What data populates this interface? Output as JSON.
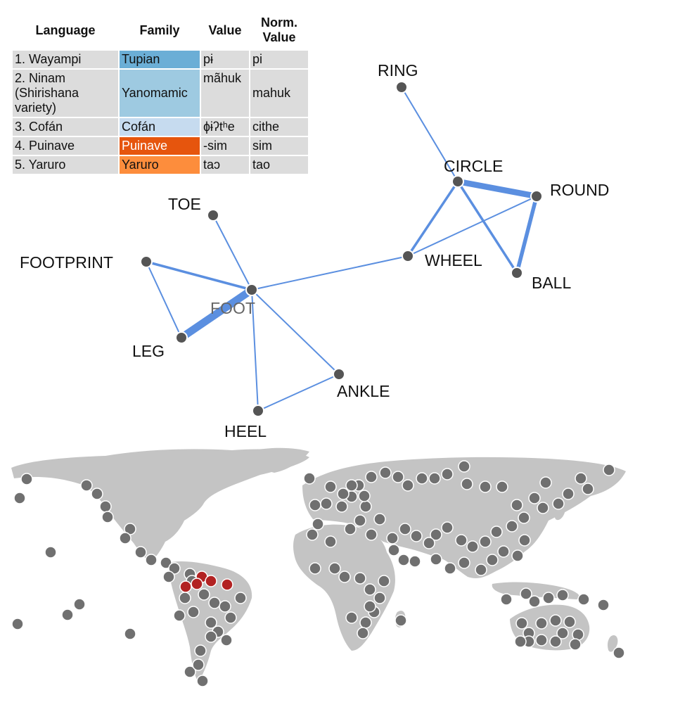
{
  "table": {
    "headers": [
      "Language",
      "Family",
      "Value",
      "Norm. Value"
    ],
    "rows": [
      {
        "language": "1. Wayampi",
        "family": "Tupian",
        "family_color": "#6baed6",
        "family_text_light": false,
        "value": "pɨ",
        "norm": "pi"
      },
      {
        "language": "2. Ninam (Shirishana variety)",
        "family": "Yanomamic",
        "family_color": "#9ecae1",
        "family_text_light": false,
        "value": "mãhuk",
        "norm": "mahuk"
      },
      {
        "language": "3. Cofán",
        "family": "Cofán",
        "family_color": "#c6dbef",
        "family_text_light": false,
        "value": "ɸɨʔtʰe",
        "norm": "cithe"
      },
      {
        "language": "4. Puinave",
        "family": "Puinave",
        "family_color": "#e6550d",
        "family_text_light": true,
        "value": "-sim",
        "norm": "sim"
      },
      {
        "language": "5. Yaruro",
        "family": "Yaruro",
        "family_color": "#fd8d3c",
        "family_text_light": false,
        "value": "taɔ",
        "norm": "tao"
      }
    ]
  },
  "network": {
    "node_color": "#555555",
    "edge_color": "#5b8fe0",
    "nodes": [
      {
        "id": "RING",
        "label": "RING"
      },
      {
        "id": "CIRCLE",
        "label": "CIRCLE"
      },
      {
        "id": "ROUND",
        "label": "ROUND"
      },
      {
        "id": "WHEEL",
        "label": "WHEEL"
      },
      {
        "id": "BALL",
        "label": "BALL"
      },
      {
        "id": "TOE",
        "label": "TOE"
      },
      {
        "id": "FOOTPRINT",
        "label": "FOOTPRINT"
      },
      {
        "id": "FOOT",
        "label": "FOOT",
        "dim": true
      },
      {
        "id": "LEG",
        "label": "LEG"
      },
      {
        "id": "ANKLE",
        "label": "ANKLE"
      },
      {
        "id": "HEEL",
        "label": "HEEL"
      }
    ],
    "edges": [
      {
        "source": "RING",
        "target": "CIRCLE",
        "weight": 1
      },
      {
        "source": "CIRCLE",
        "target": "ROUND",
        "weight": 4
      },
      {
        "source": "CIRCLE",
        "target": "WHEEL",
        "weight": 2
      },
      {
        "source": "CIRCLE",
        "target": "BALL",
        "weight": 2
      },
      {
        "source": "ROUND",
        "target": "WHEEL",
        "weight": 1
      },
      {
        "source": "ROUND",
        "target": "BALL",
        "weight": 3
      },
      {
        "source": "WHEEL",
        "target": "FOOT",
        "weight": 1
      },
      {
        "source": "TOE",
        "target": "FOOT",
        "weight": 1
      },
      {
        "source": "FOOTPRINT",
        "target": "FOOT",
        "weight": 2
      },
      {
        "source": "FOOTPRINT",
        "target": "LEG",
        "weight": 1
      },
      {
        "source": "FOOT",
        "target": "LEG",
        "weight": 5
      },
      {
        "source": "FOOT",
        "target": "ANKLE",
        "weight": 1
      },
      {
        "source": "FOOT",
        "target": "HEEL",
        "weight": 1
      },
      {
        "source": "ANKLE",
        "target": "HEEL",
        "weight": 1
      }
    ]
  },
  "map": {
    "land_color": "#c4c4c4",
    "marker_color": "#707070",
    "highlight_color": "#b22222",
    "highlighted_language_count": 5
  }
}
